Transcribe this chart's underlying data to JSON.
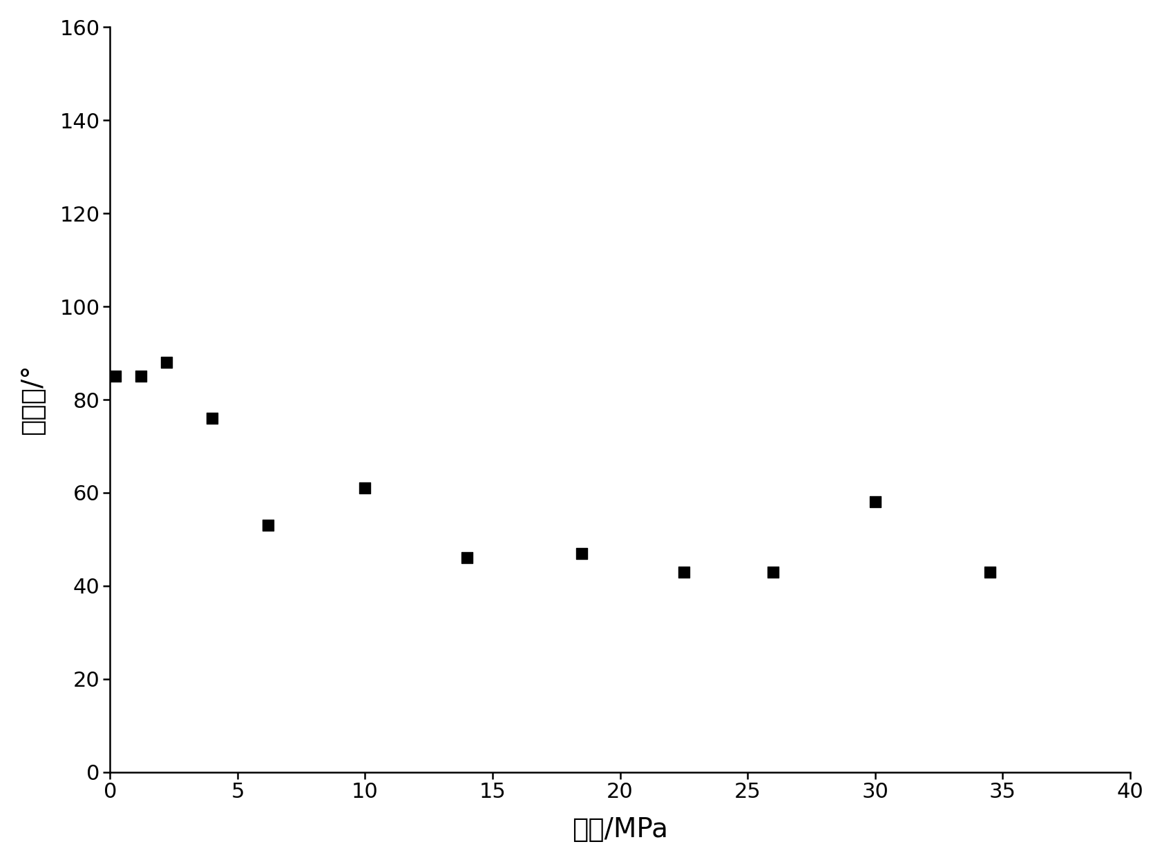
{
  "x": [
    0.2,
    1.2,
    2.2,
    4.0,
    6.2,
    10.0,
    14.0,
    18.5,
    22.5,
    26.0,
    30.0,
    34.5
  ],
  "y": [
    85,
    85,
    88,
    76,
    53,
    61,
    46,
    47,
    43,
    43,
    58,
    43
  ],
  "xlabel": "压力/MPa",
  "ylabel": "接触角/°",
  "xlim": [
    0,
    40
  ],
  "ylim": [
    0,
    160
  ],
  "xticks": [
    0,
    5,
    10,
    15,
    20,
    25,
    30,
    35,
    40
  ],
  "yticks": [
    0,
    20,
    40,
    60,
    80,
    100,
    120,
    140,
    160
  ],
  "marker": "s",
  "marker_color": "#000000",
  "marker_size": 11,
  "background_color": "#ffffff",
  "axis_linewidth": 1.8,
  "tick_fontsize": 22,
  "label_fontsize": 28
}
